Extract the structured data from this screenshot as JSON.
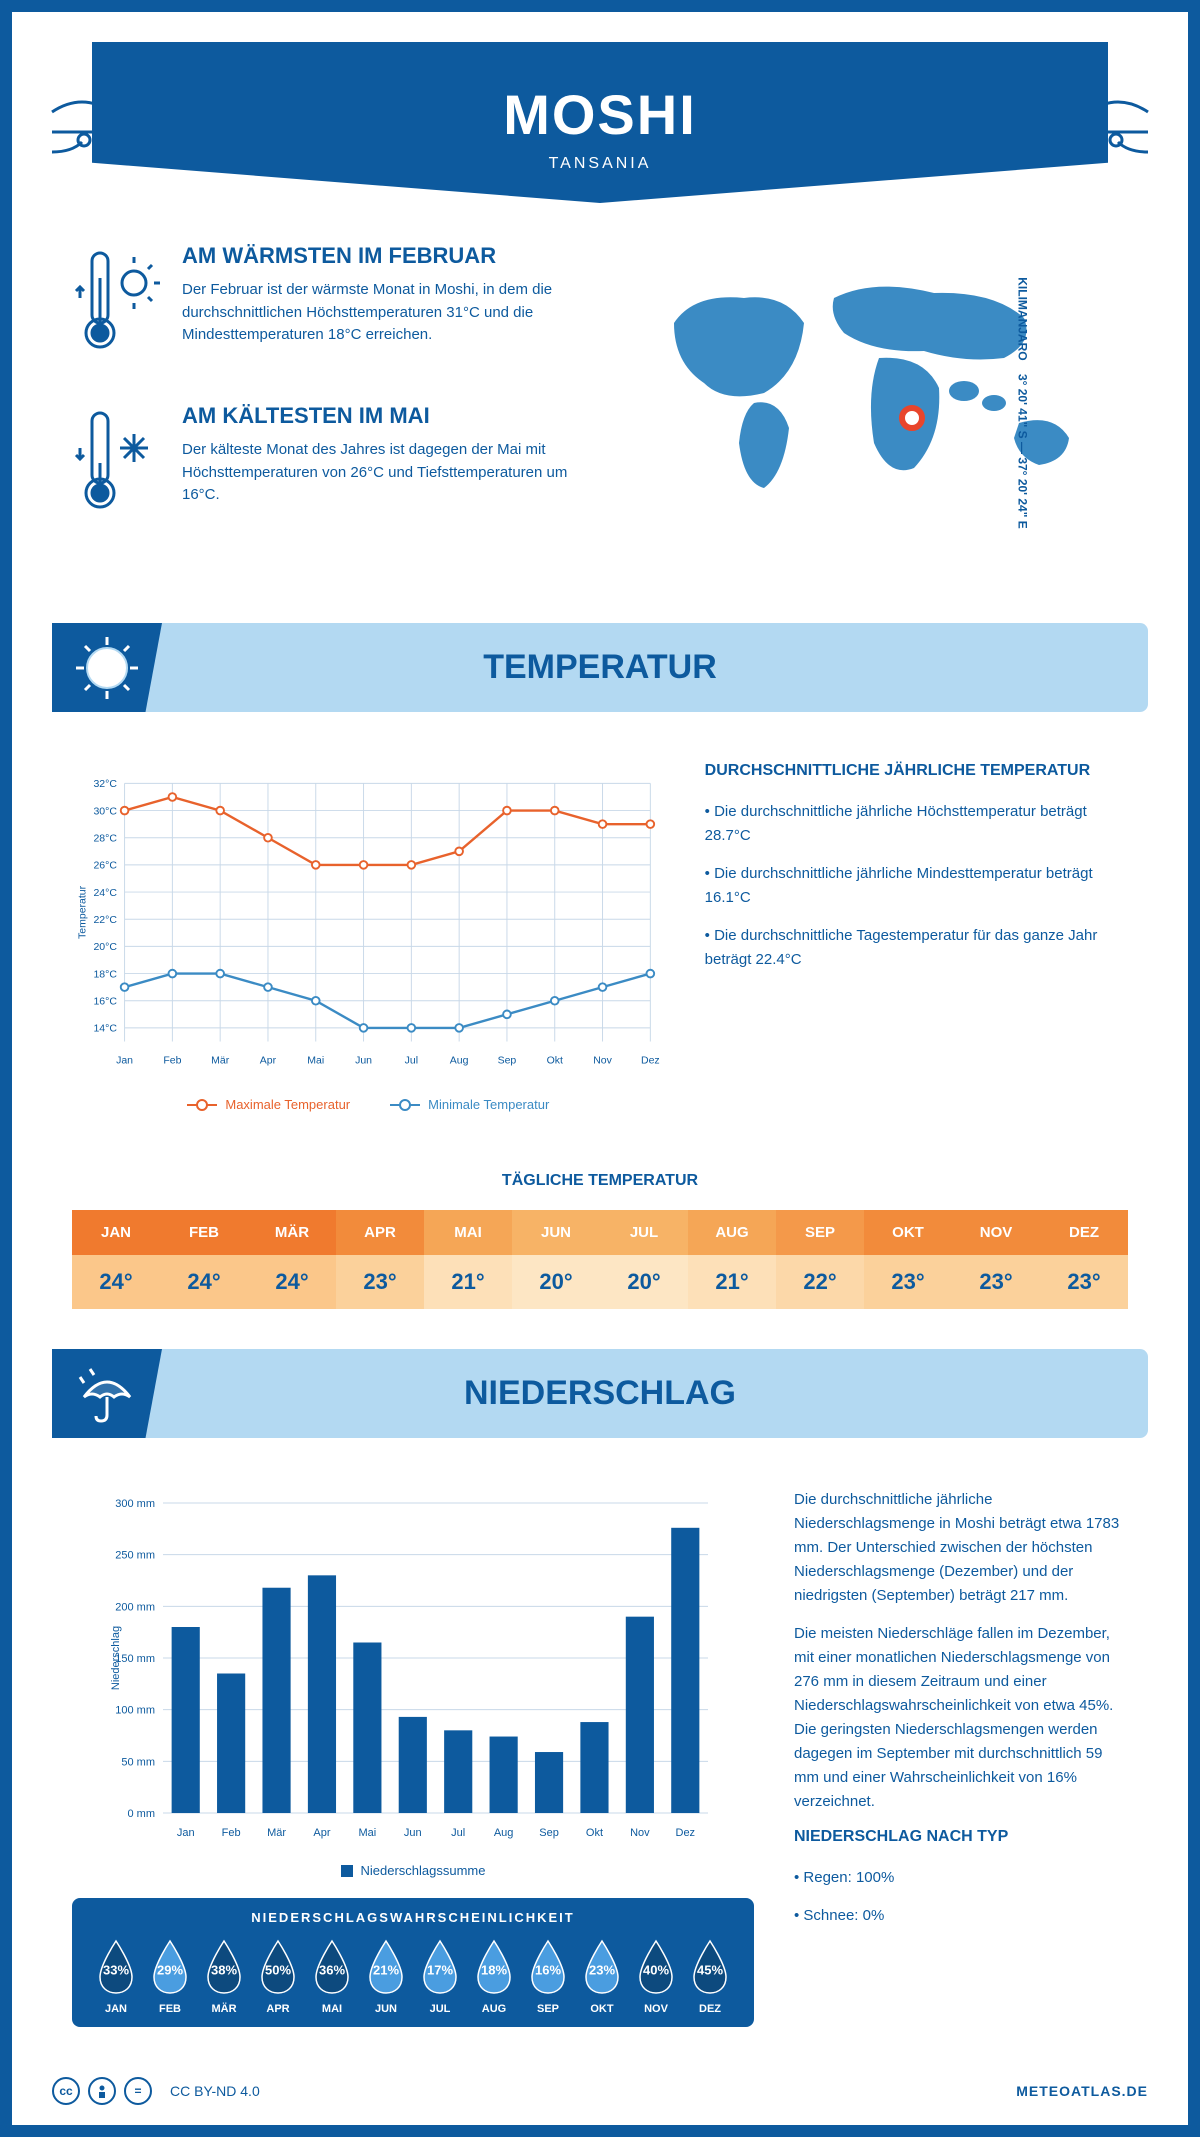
{
  "header": {
    "city": "MOSHI",
    "country": "TANSANIA",
    "coords": "3° 20' 41\" S — 37° 20' 24\" E",
    "region": "KILIMANJARO"
  },
  "facts": {
    "warm": {
      "title": "AM WÄRMSTEN IM FEBRUAR",
      "text": "Der Februar ist der wärmste Monat in Moshi, in dem die durchschnittlichen Höchsttemperaturen 31°C und die Mindesttemperaturen 18°C erreichen."
    },
    "cold": {
      "title": "AM KÄLTESTEN IM MAI",
      "text": "Der kälteste Monat des Jahres ist dagegen der Mai mit Höchsttemperaturen von 26°C und Tiefsttemperaturen um 16°C."
    }
  },
  "months": [
    "Jan",
    "Feb",
    "Mär",
    "Apr",
    "Mai",
    "Jun",
    "Jul",
    "Aug",
    "Sep",
    "Okt",
    "Nov",
    "Dez"
  ],
  "months_upper": [
    "JAN",
    "FEB",
    "MÄR",
    "APR",
    "MAI",
    "JUN",
    "JUL",
    "AUG",
    "SEP",
    "OKT",
    "NOV",
    "DEZ"
  ],
  "temperature": {
    "section_title": "TEMPERATUR",
    "ylabel": "Temperatur",
    "ylim": [
      13,
      32
    ],
    "yticks": [
      14,
      16,
      18,
      20,
      22,
      24,
      26,
      28,
      30,
      32
    ],
    "ytick_labels": [
      "14°C",
      "16°C",
      "18°C",
      "20°C",
      "22°C",
      "24°C",
      "26°C",
      "28°C",
      "30°C",
      "32°C"
    ],
    "max_series": [
      30,
      31,
      30,
      28,
      26,
      26,
      26,
      27,
      30,
      30,
      29,
      29
    ],
    "min_series": [
      17,
      18,
      18,
      17,
      16,
      14,
      14,
      14,
      15,
      16,
      17,
      18
    ],
    "max_color": "#e8622c",
    "min_color": "#3b8bc4",
    "grid_color": "#c8d8e8",
    "legend_max": "Maximale Temperatur",
    "legend_min": "Minimale Temperatur",
    "summary_title": "DURCHSCHNITTLICHE JÄHRLICHE TEMPERATUR",
    "summary_points": [
      "• Die durchschnittliche jährliche Höchsttemperatur beträgt 28.7°C",
      "• Die durchschnittliche jährliche Mindesttemperatur beträgt 16.1°C",
      "• Die durchschnittliche Tagestemperatur für das ganze Jahr beträgt 22.4°C"
    ],
    "daily_title": "TÄGLICHE TEMPERATUR",
    "daily_values": [
      "24°",
      "24°",
      "24°",
      "23°",
      "21°",
      "20°",
      "20°",
      "21°",
      "22°",
      "23°",
      "23°",
      "23°"
    ],
    "daily_header_colors": [
      "#f07a2e",
      "#f07a2e",
      "#f07a2e",
      "#f28b3b",
      "#f5a656",
      "#f7b366",
      "#f7b366",
      "#f5a656",
      "#f4994a",
      "#f28b3b",
      "#f28b3b",
      "#f28b3b"
    ],
    "daily_value_colors": [
      "#fbc78a",
      "#fbc78a",
      "#fbc78a",
      "#fbd19b",
      "#fde0b8",
      "#fde6c4",
      "#fde6c4",
      "#fde0b8",
      "#fcd8a9",
      "#fbd19b",
      "#fbd19b",
      "#fbd19b"
    ]
  },
  "precipitation": {
    "section_title": "NIEDERSCHLAG",
    "ylabel": "Niederschlag",
    "ylim": [
      0,
      300
    ],
    "yticks": [
      0,
      50,
      100,
      150,
      200,
      250,
      300
    ],
    "ytick_labels": [
      "0 mm",
      "50 mm",
      "100 mm",
      "150 mm",
      "200 mm",
      "250 mm",
      "300 mm"
    ],
    "values": [
      180,
      135,
      218,
      230,
      165,
      93,
      80,
      74,
      59,
      88,
      190,
      276
    ],
    "bar_color": "#0d5a9e",
    "grid_color": "#c8d8e8",
    "legend": "Niederschlagssumme",
    "text_p1": "Die durchschnittliche jährliche Niederschlagsmenge in Moshi beträgt etwa 1783 mm. Der Unterschied zwischen der höchsten Niederschlagsmenge (Dezember) und der niedrigsten (September) beträgt 217 mm.",
    "text_p2": "Die meisten Niederschläge fallen im Dezember, mit einer monatlichen Niederschlagsmenge von 276 mm in diesem Zeitraum und einer Niederschlagswahrscheinlichkeit von etwa 45%. Die geringsten Niederschlagsmengen werden dagegen im September mit durchschnittlich 59 mm und einer Wahrscheinlichkeit von 16% verzeichnet.",
    "by_type_title": "NIEDERSCHLAG NACH TYP",
    "by_type": [
      "• Regen: 100%",
      "• Schnee: 0%"
    ],
    "prob_title": "NIEDERSCHLAGSWAHRSCHEINLICHKEIT",
    "prob_values": [
      33,
      29,
      38,
      50,
      36,
      21,
      17,
      18,
      16,
      23,
      40,
      45
    ],
    "prob_labels": [
      "33%",
      "29%",
      "38%",
      "50%",
      "36%",
      "21%",
      "17%",
      "18%",
      "16%",
      "23%",
      "40%",
      "45%"
    ],
    "drop_dark": "#0d4a7e",
    "drop_light": "#4a9de0"
  },
  "footer": {
    "license": "CC BY-ND 4.0",
    "site": "METEOATLAS.DE"
  },
  "colors": {
    "primary": "#0d5a9e",
    "light_blue": "#b3d9f2",
    "map_blue": "#3b8bc4"
  }
}
